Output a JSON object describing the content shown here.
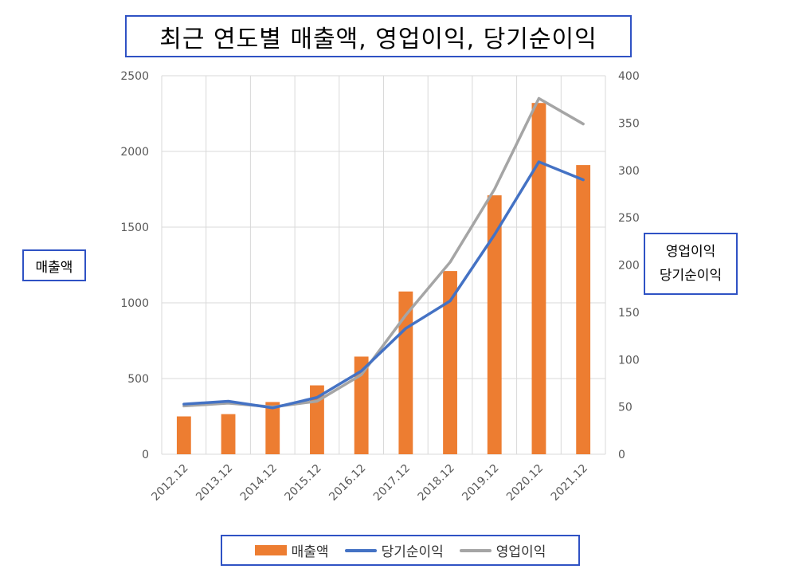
{
  "chart_data": {
    "type": "bar",
    "title": "최근 연도별 매출액, 영업이익, 당기순이익",
    "categories": [
      "2012.12",
      "2013.12",
      "2014.12",
      "2015.12",
      "2016.12",
      "2017.12",
      "2018.12",
      "2019.12",
      "2020.12",
      "2021.12"
    ],
    "ylabel": "매출액",
    "y2label_line1": "영업이익",
    "y2label_line2": "당기순이익",
    "ylim": [
      0,
      2500
    ],
    "y2lim": [
      0,
      400
    ],
    "yticks": [
      "0",
      "500",
      "1000",
      "1500",
      "2000",
      "2500"
    ],
    "y2ticks": [
      "0",
      "50",
      "100",
      "150",
      "200",
      "250",
      "300",
      "350",
      "400"
    ],
    "grid": true,
    "legend_position": "bottom",
    "series": [
      {
        "name": "매출액",
        "type": "bar",
        "axis": "left",
        "color": "#ed7d31",
        "values": [
          250,
          265,
          345,
          455,
          645,
          1075,
          1210,
          1710,
          2320,
          1910
        ]
      },
      {
        "name": "당기순이익",
        "type": "line",
        "axis": "right",
        "color": "#4472c4",
        "values": [
          53,
          56,
          49,
          60,
          88,
          133,
          162,
          232,
          309,
          290
        ]
      },
      {
        "name": "영업이익",
        "type": "line",
        "axis": "right",
        "color": "#a5a5a5",
        "values": [
          51,
          54,
          50,
          56,
          84,
          147,
          203,
          280,
          376,
          349
        ]
      }
    ]
  }
}
